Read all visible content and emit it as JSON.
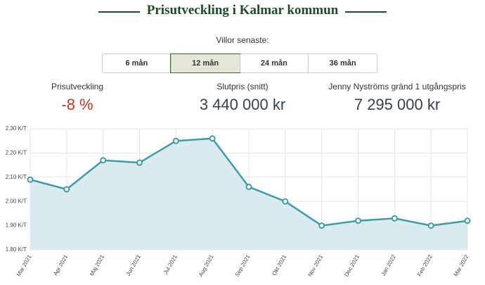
{
  "header": {
    "title": "Prisutveckling i Kalmar kommun",
    "subtitle": "Villor senaste:"
  },
  "tabs": {
    "items": [
      "6 mån",
      "12 mån",
      "24 mån",
      "36 mån"
    ],
    "selected": 1
  },
  "stats": [
    {
      "label": "Prisutveckling",
      "value": "-8 %"
    },
    {
      "label": "Slutpris (snitt)",
      "value": "3 440 000 kr"
    },
    {
      "label": "Jenny Nyströms gränd 1 utgångspris",
      "value": "7 295 000 kr"
    }
  ],
  "chart_data": {
    "type": "line",
    "categories": [
      "Mar 2021",
      "Apr 2021",
      "Maj 2021",
      "Jun 2021",
      "Jul 2021",
      "Aug 2021",
      "Sep 2021",
      "Okt 2021",
      "Nov 2021",
      "Dec 2021",
      "Jan 2022",
      "Feb 2022",
      "Mar 2022"
    ],
    "values": [
      2.09,
      2.05,
      2.17,
      2.16,
      2.25,
      2.26,
      2.06,
      2.0,
      1.9,
      1.92,
      1.93,
      1.9,
      1.92
    ],
    "color": "#3f9ba6",
    "fill": "#d9ebef",
    "ylim": [
      1.8,
      2.3
    ],
    "yticks": [
      {
        "value": 1.8,
        "label": "1.80 K/T"
      },
      {
        "value": 1.9,
        "label": "1.90 K/T"
      },
      {
        "value": 2.0,
        "label": "2.00 K/T"
      },
      {
        "value": 2.1,
        "label": "2.10 K/T"
      },
      {
        "value": 2.2,
        "label": "2.20 K/T"
      },
      {
        "value": 2.3,
        "label": "2.30 K/T"
      }
    ],
    "grid": true
  }
}
